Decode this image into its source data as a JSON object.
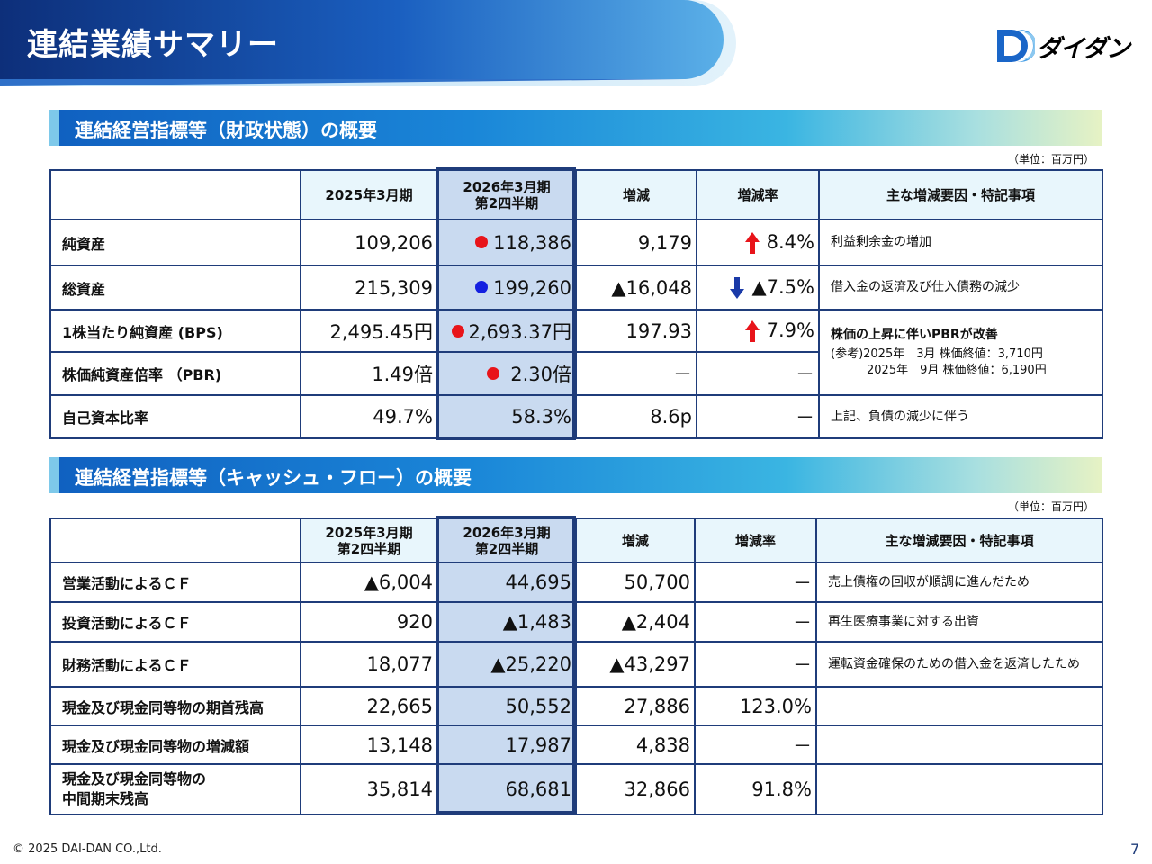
{
  "header": {
    "title": "連結業績サマリー",
    "logo_text": "ダイダン",
    "colors": {
      "band_dark": "#0d2f7a",
      "band_mid": "#1a5fc0",
      "band_light": "#5bb0e8"
    }
  },
  "section1": {
    "title": "連結経営指標等（財政状態）の概要",
    "unit": "（単位：百万円）",
    "columns": [
      "",
      "2025年3月期",
      "2026年3月期\n第2四半期",
      "増減",
      "増減率",
      "主な増減要因・特記事項"
    ],
    "rows": [
      {
        "label": "純資産",
        "prev": "109,206",
        "dot": "red",
        "curr": "118,386",
        "diff": "9,179",
        "arrow": "up",
        "rate": "8.4%",
        "note": "利益剰余金の増加"
      },
      {
        "label": "総資産",
        "prev": "215,309",
        "dot": "blue",
        "curr": "199,260",
        "diff": "▲16,048",
        "arrow": "down",
        "rate": "▲7.5%",
        "note": "借入金の返済及び仕入債務の減少"
      },
      {
        "label": "1株当たり純資産 (BPS)",
        "prev": "2,495.45円",
        "dot": "red",
        "curr": "2,693.37円",
        "diff": "197.93",
        "arrow": "up",
        "rate": "7.9%"
      },
      {
        "label": "株価純資産倍率 （PBR)",
        "prev": "1.49倍",
        "dot": "red",
        "curr": "2.30倍",
        "diff": "－",
        "arrow": "",
        "rate": "－"
      },
      {
        "label": "自己資本比率",
        "prev": "49.7%",
        "dot": "",
        "curr": "58.3%",
        "diff": "8.6p",
        "arrow": "",
        "rate": "－",
        "note": "上記、負債の減少に伴う"
      }
    ],
    "merged_note": {
      "bold": "株価の上昇に伴いPBRが改善",
      "line1": "(参考)2025年　3月 株価終値：3,710円",
      "line2": "2025年　9月 株価終値：6,190円"
    }
  },
  "section2": {
    "title": "連結経営指標等（キャッシュ・フロー）の概要",
    "unit": "（単位：百万円）",
    "columns": [
      "",
      "2025年3月期\n第2四半期",
      "2026年3月期\n第2四半期",
      "増減",
      "増減率",
      "主な増減要因・特記事項"
    ],
    "rows": [
      {
        "label": "営業活動によるＣＦ",
        "prev": "▲6,004",
        "curr": "44,695",
        "diff": "50,700",
        "rate": "－",
        "note": "売上債権の回収が順調に進んだため"
      },
      {
        "label": "投資活動によるＣＦ",
        "prev": "920",
        "curr": "▲1,483",
        "diff": "▲2,404",
        "rate": "－",
        "note": "再生医療事業に対する出資"
      },
      {
        "label": "財務活動によるＣＦ",
        "prev": "18,077",
        "curr": "▲25,220",
        "diff": "▲43,297",
        "rate": "－",
        "note": "運転資金確保のための借入金を返済したため"
      },
      {
        "label": "現金及び現金同等物の期首残高",
        "prev": "22,665",
        "curr": "50,552",
        "diff": "27,886",
        "rate": "123.0%",
        "note": ""
      },
      {
        "label": "現金及び現金同等物の増減額",
        "prev": "13,148",
        "curr": "17,987",
        "diff": "4,838",
        "rate": "－",
        "note": ""
      },
      {
        "label": "現金及び現金同等物の\n中間期末残高",
        "prev": "35,814",
        "curr": "68,681",
        "diff": "32,866",
        "rate": "91.8%",
        "note": ""
      }
    ]
  },
  "footer": {
    "copyright": "© 2025 DAI-DAN CO.,Ltd.",
    "page_number": "7"
  }
}
